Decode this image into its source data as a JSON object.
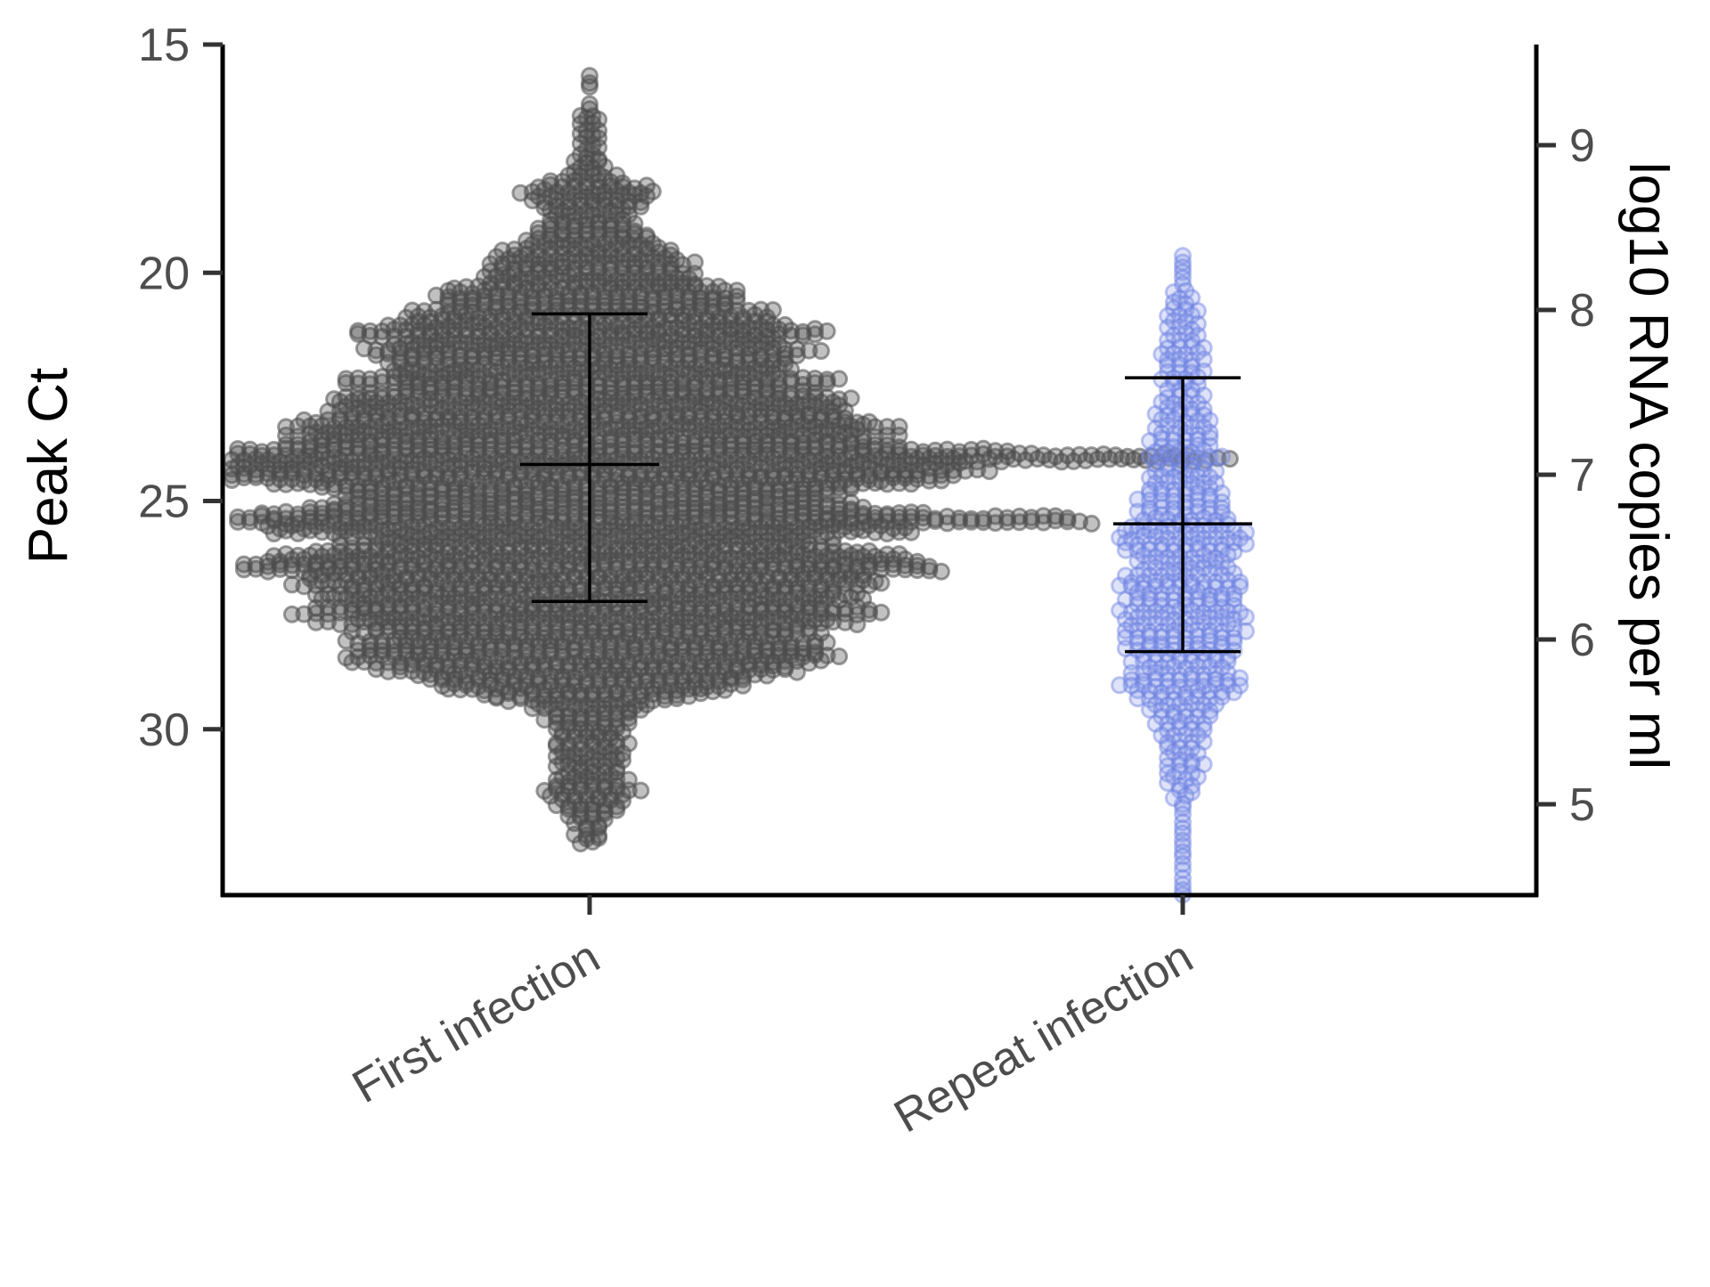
{
  "chart_data": {
    "type": "scatter",
    "subtype": "beeswarm with mean and standard deviation bars",
    "title": "",
    "xlabel": "",
    "ylabel": "Peak Ct",
    "ylabel_right": "log10 RNA copies per ml",
    "categories": [
      "First infection",
      "Repeat infection"
    ],
    "ylim": [
      33.5,
      15
    ],
    "y_inverted": true,
    "yticks": [
      "15",
      "20",
      "25",
      "30"
    ],
    "y2lim": [
      4.45,
      9.64
    ],
    "y2ticks": [
      "5",
      "6",
      "7",
      "8",
      "9"
    ],
    "grid": false,
    "legend": "none",
    "colors": {
      "First infection": "#4d4d4d",
      "Repeat infection": "#8a9ae8",
      "summary_bars": "#000000",
      "axes": "#000000"
    },
    "summary": [
      {
        "category": "First infection",
        "mean": 24.2,
        "sd_low": 20.9,
        "sd_high": 27.2
      },
      {
        "category": "Repeat infection",
        "mean": 25.5,
        "sd_low": 22.3,
        "sd_high": 28.3
      }
    ],
    "distributions": [
      {
        "category": "First infection",
        "range": [
          15.7,
          32.5
        ],
        "density_profile": [
          [
            15.7,
            1
          ],
          [
            16.2,
            0
          ],
          [
            16.6,
            2
          ],
          [
            17.2,
            2
          ],
          [
            17.8,
            3
          ],
          [
            18.2,
            12
          ],
          [
            18.7,
            6
          ],
          [
            19.3,
            12
          ],
          [
            20.0,
            18
          ],
          [
            20.6,
            24
          ],
          [
            21.0,
            34
          ],
          [
            21.5,
            36
          ],
          [
            22.0,
            36
          ],
          [
            22.5,
            38
          ],
          [
            23.0,
            40
          ],
          [
            23.2,
            50
          ],
          [
            23.6,
            48
          ],
          [
            24.1,
            78
          ],
          [
            24.6,
            48
          ],
          [
            25.0,
            46
          ],
          [
            25.4,
            60
          ],
          [
            25.9,
            42
          ],
          [
            26.5,
            52
          ],
          [
            27.0,
            40
          ],
          [
            27.4,
            44
          ],
          [
            28.0,
            36
          ],
          [
            28.5,
            38
          ],
          [
            29.0,
            30
          ],
          [
            29.5,
            10
          ],
          [
            30.0,
            6
          ],
          [
            30.5,
            6
          ],
          [
            31.0,
            6
          ],
          [
            31.4,
            8
          ],
          [
            32.0,
            3
          ],
          [
            32.5,
            2
          ]
        ],
        "count_estimate": 1900
      },
      {
        "category": "Repeat infection",
        "range": [
          19.6,
          33.7
        ],
        "density_profile": [
          [
            19.6,
            1
          ],
          [
            20.2,
            1
          ],
          [
            20.8,
            3
          ],
          [
            21.3,
            3
          ],
          [
            21.9,
            4
          ],
          [
            22.4,
            4
          ],
          [
            22.9,
            4
          ],
          [
            23.3,
            5
          ],
          [
            23.8,
            6
          ],
          [
            24.2,
            6
          ],
          [
            24.7,
            6
          ],
          [
            25.3,
            8
          ],
          [
            25.7,
            12
          ],
          [
            26.2,
            8
          ],
          [
            26.7,
            10
          ],
          [
            27.2,
            10
          ],
          [
            27.6,
            10
          ],
          [
            28.1,
            10
          ],
          [
            28.6,
            8
          ],
          [
            29.0,
            12
          ],
          [
            29.5,
            6
          ],
          [
            30.0,
            4
          ],
          [
            30.3,
            4
          ],
          [
            31.5,
            2
          ],
          [
            31.8,
            1
          ],
          [
            33.7,
            1
          ]
        ],
        "count_estimate": 250
      }
    ]
  }
}
